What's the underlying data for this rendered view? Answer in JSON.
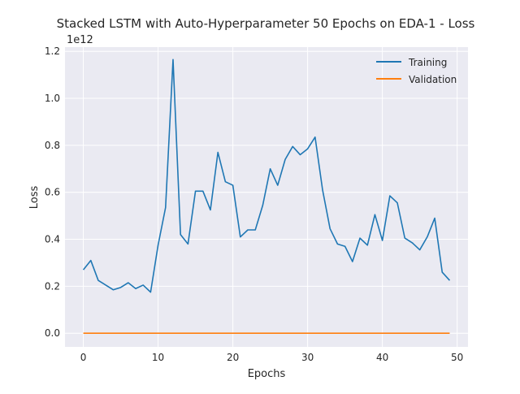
{
  "chart_data": {
    "type": "line",
    "title": "Stacked LSTM with Auto-Hyperparameter 50 Epochs on EDA-1 - Loss",
    "xlabel": "Epochs",
    "ylabel": "Loss",
    "y_offset_label": "1e12",
    "xlim": [
      -2.45,
      51.45
    ],
    "ylim": [
      -0.058,
      1.218
    ],
    "x_ticks": [
      0,
      10,
      20,
      30,
      40,
      50
    ],
    "y_ticks": [
      0.0,
      0.2,
      0.4,
      0.6,
      0.8,
      1.0,
      1.2
    ],
    "y_tick_labels": [
      "0.0",
      "0.2",
      "0.4",
      "0.6",
      "0.8",
      "1.0",
      "1.2"
    ],
    "grid": true,
    "legend_position": "top-right",
    "x": [
      0,
      1,
      2,
      3,
      4,
      5,
      6,
      7,
      8,
      9,
      10,
      11,
      12,
      13,
      14,
      15,
      16,
      17,
      18,
      19,
      20,
      21,
      22,
      23,
      24,
      25,
      26,
      27,
      28,
      29,
      30,
      31,
      32,
      33,
      34,
      35,
      36,
      37,
      38,
      39,
      40,
      41,
      42,
      43,
      44,
      45,
      46,
      47,
      48,
      49
    ],
    "series": [
      {
        "name": "Training",
        "color": "#1f77b4",
        "values": [
          0.27,
          0.31,
          0.225,
          0.205,
          0.185,
          0.195,
          0.215,
          0.19,
          0.205,
          0.175,
          0.375,
          0.535,
          1.165,
          0.42,
          0.38,
          0.605,
          0.605,
          0.525,
          0.77,
          0.645,
          0.63,
          0.41,
          0.44,
          0.44,
          0.545,
          0.7,
          0.63,
          0.74,
          0.795,
          0.76,
          0.785,
          0.835,
          0.61,
          0.445,
          0.38,
          0.37,
          0.305,
          0.405,
          0.375,
          0.505,
          0.395,
          0.585,
          0.555,
          0.405,
          0.385,
          0.355,
          0.41,
          0.49,
          0.26,
          0.225
        ]
      },
      {
        "name": "Validation",
        "color": "#ff7f0e",
        "values": [
          0,
          0,
          0,
          0,
          0,
          0,
          0,
          0,
          0,
          0,
          0,
          0,
          0,
          0,
          0,
          0,
          0,
          0,
          0,
          0,
          0,
          0,
          0,
          0,
          0,
          0,
          0,
          0,
          0,
          0,
          0,
          0,
          0,
          0,
          0,
          0,
          0,
          0,
          0,
          0,
          0,
          0,
          0,
          0,
          0,
          0,
          0,
          0,
          0,
          0
        ]
      }
    ]
  }
}
